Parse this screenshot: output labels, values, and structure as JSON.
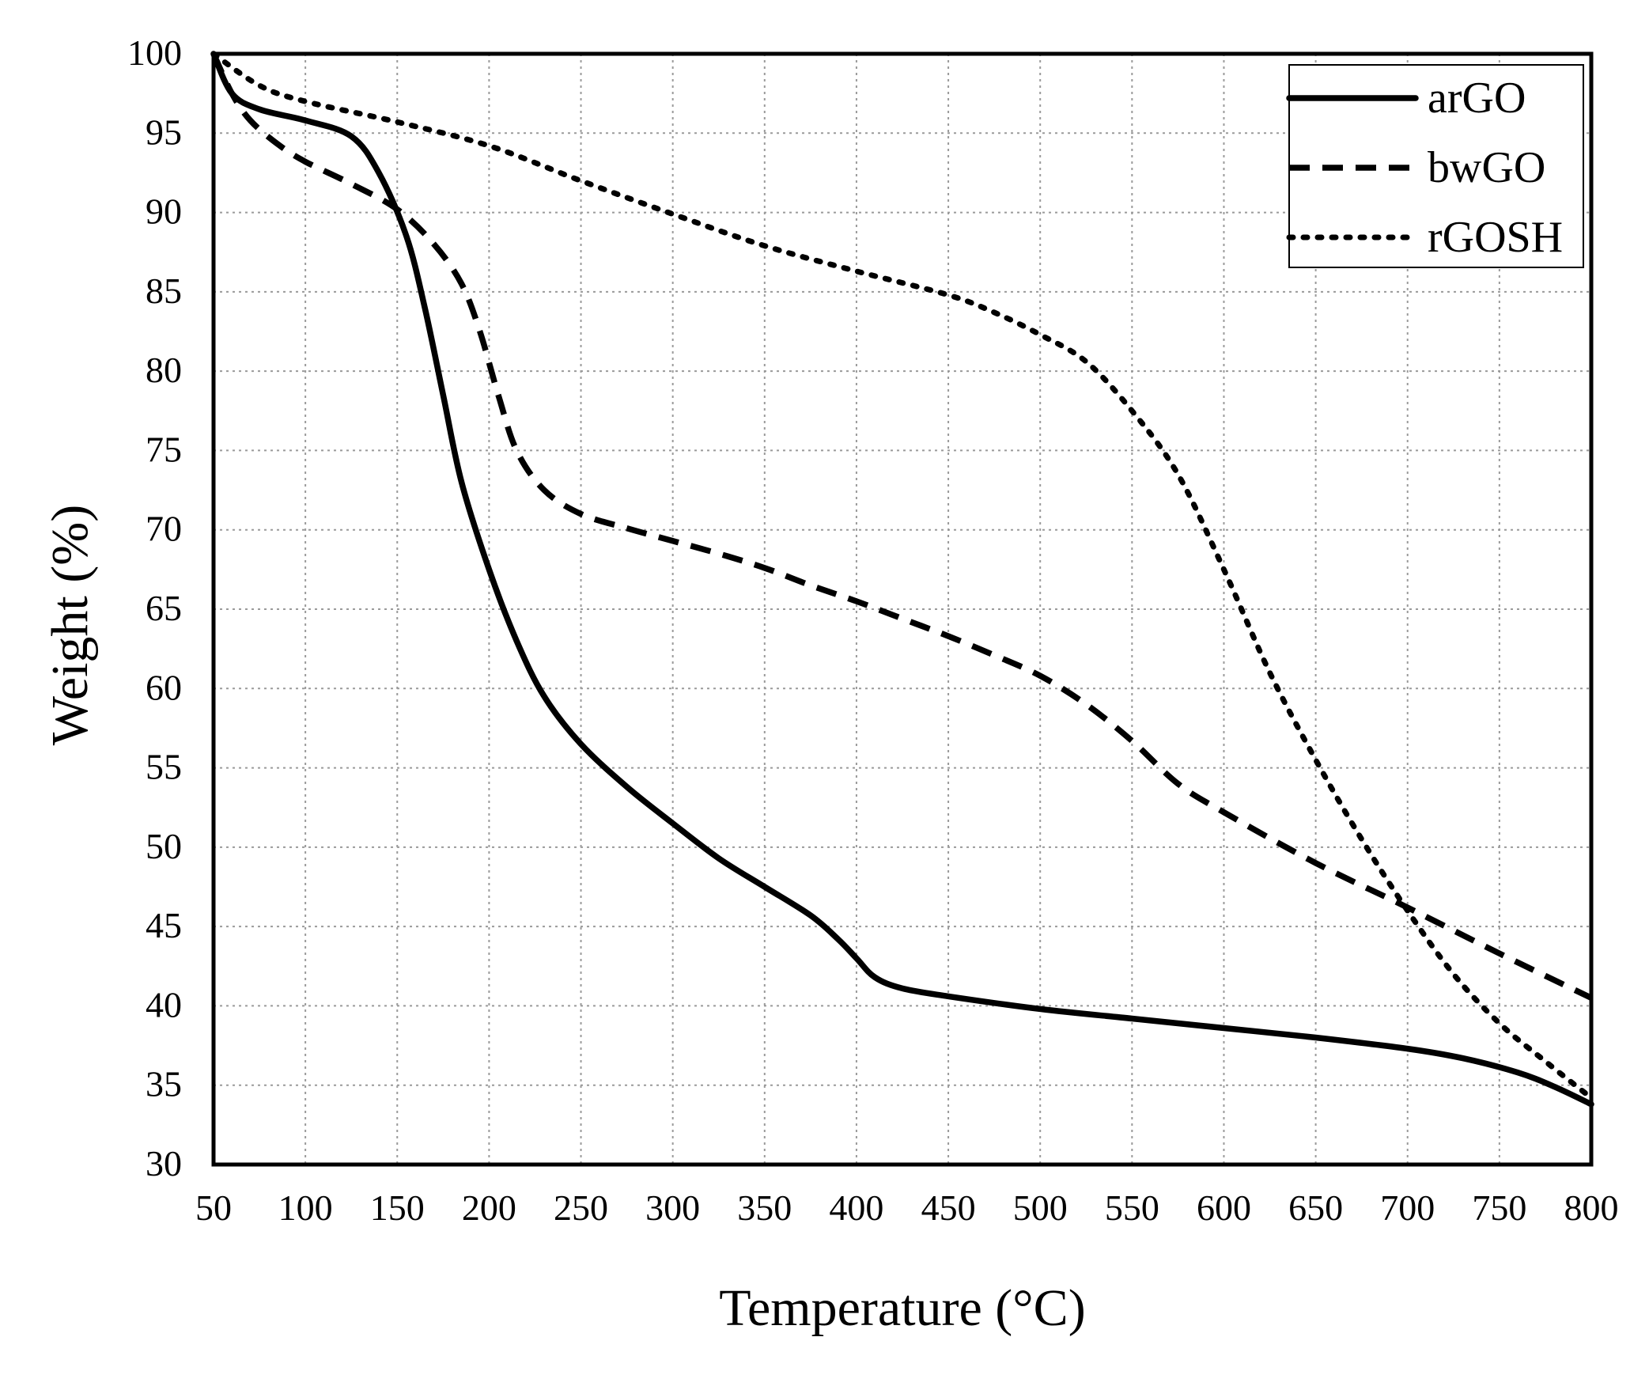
{
  "chart_data": {
    "type": "line",
    "title": "",
    "xlabel": "Temperature (°C)",
    "ylabel": "Weight (%)",
    "xlim": [
      50,
      800
    ],
    "ylim": [
      30,
      100
    ],
    "xticks": [
      50,
      100,
      150,
      200,
      250,
      300,
      350,
      400,
      450,
      500,
      550,
      600,
      650,
      700,
      750,
      800
    ],
    "yticks": [
      30,
      35,
      40,
      45,
      50,
      55,
      60,
      65,
      70,
      75,
      80,
      85,
      90,
      95,
      100
    ],
    "grid": true,
    "legend_position": "top-right",
    "series": [
      {
        "name": "arGO",
        "style": "solid",
        "color": "#000000",
        "x": [
          50,
          60,
          75,
          100,
          125,
          140,
          155,
          165,
          175,
          185,
          200,
          215,
          230,
          250,
          275,
          300,
          325,
          350,
          375,
          390,
          400,
          410,
          425,
          450,
          500,
          550,
          600,
          650,
          700,
          730,
          760,
          780,
          800
        ],
        "y": [
          100,
          97.5,
          96.5,
          95.8,
          94.8,
          92.5,
          88.5,
          84,
          78.5,
          73,
          67.5,
          63,
          59.5,
          56.5,
          53.8,
          51.5,
          49.3,
          47.5,
          45.7,
          44.2,
          43,
          41.8,
          41.1,
          40.6,
          39.8,
          39.2,
          38.6,
          38,
          37.3,
          36.7,
          35.8,
          34.9,
          33.8
        ]
      },
      {
        "name": "bwGO",
        "style": "dashed",
        "color": "#000000",
        "x": [
          50,
          60,
          70,
          85,
          100,
          125,
          150,
          170,
          185,
          195,
          205,
          215,
          230,
          250,
          275,
          300,
          325,
          350,
          375,
          400,
          425,
          450,
          475,
          500,
          525,
          550,
          575,
          600,
          650,
          700,
          750,
          800
        ],
        "y": [
          100,
          97.5,
          95.8,
          94.3,
          93.2,
          91.8,
          90.2,
          88,
          85.5,
          82.5,
          78.5,
          75,
          72.5,
          71,
          70.1,
          69.3,
          68.5,
          67.6,
          66.5,
          65.5,
          64.4,
          63.3,
          62.1,
          60.8,
          59,
          56.7,
          54,
          52.2,
          49,
          46.2,
          43.3,
          40.5
        ]
      },
      {
        "name": "rGOSH",
        "style": "dotted",
        "color": "#000000",
        "x": [
          50,
          75,
          100,
          150,
          200,
          250,
          300,
          350,
          400,
          450,
          475,
          500,
          525,
          550,
          575,
          600,
          625,
          650,
          675,
          700,
          725,
          750,
          775,
          800
        ],
        "y": [
          100,
          98,
          97,
          95.7,
          94.2,
          92,
          89.9,
          87.9,
          86.3,
          84.8,
          83.7,
          82.3,
          80.6,
          77.5,
          73.5,
          67.5,
          61,
          55.5,
          50.5,
          46,
          42,
          38.9,
          36.5,
          34.2
        ]
      }
    ]
  }
}
